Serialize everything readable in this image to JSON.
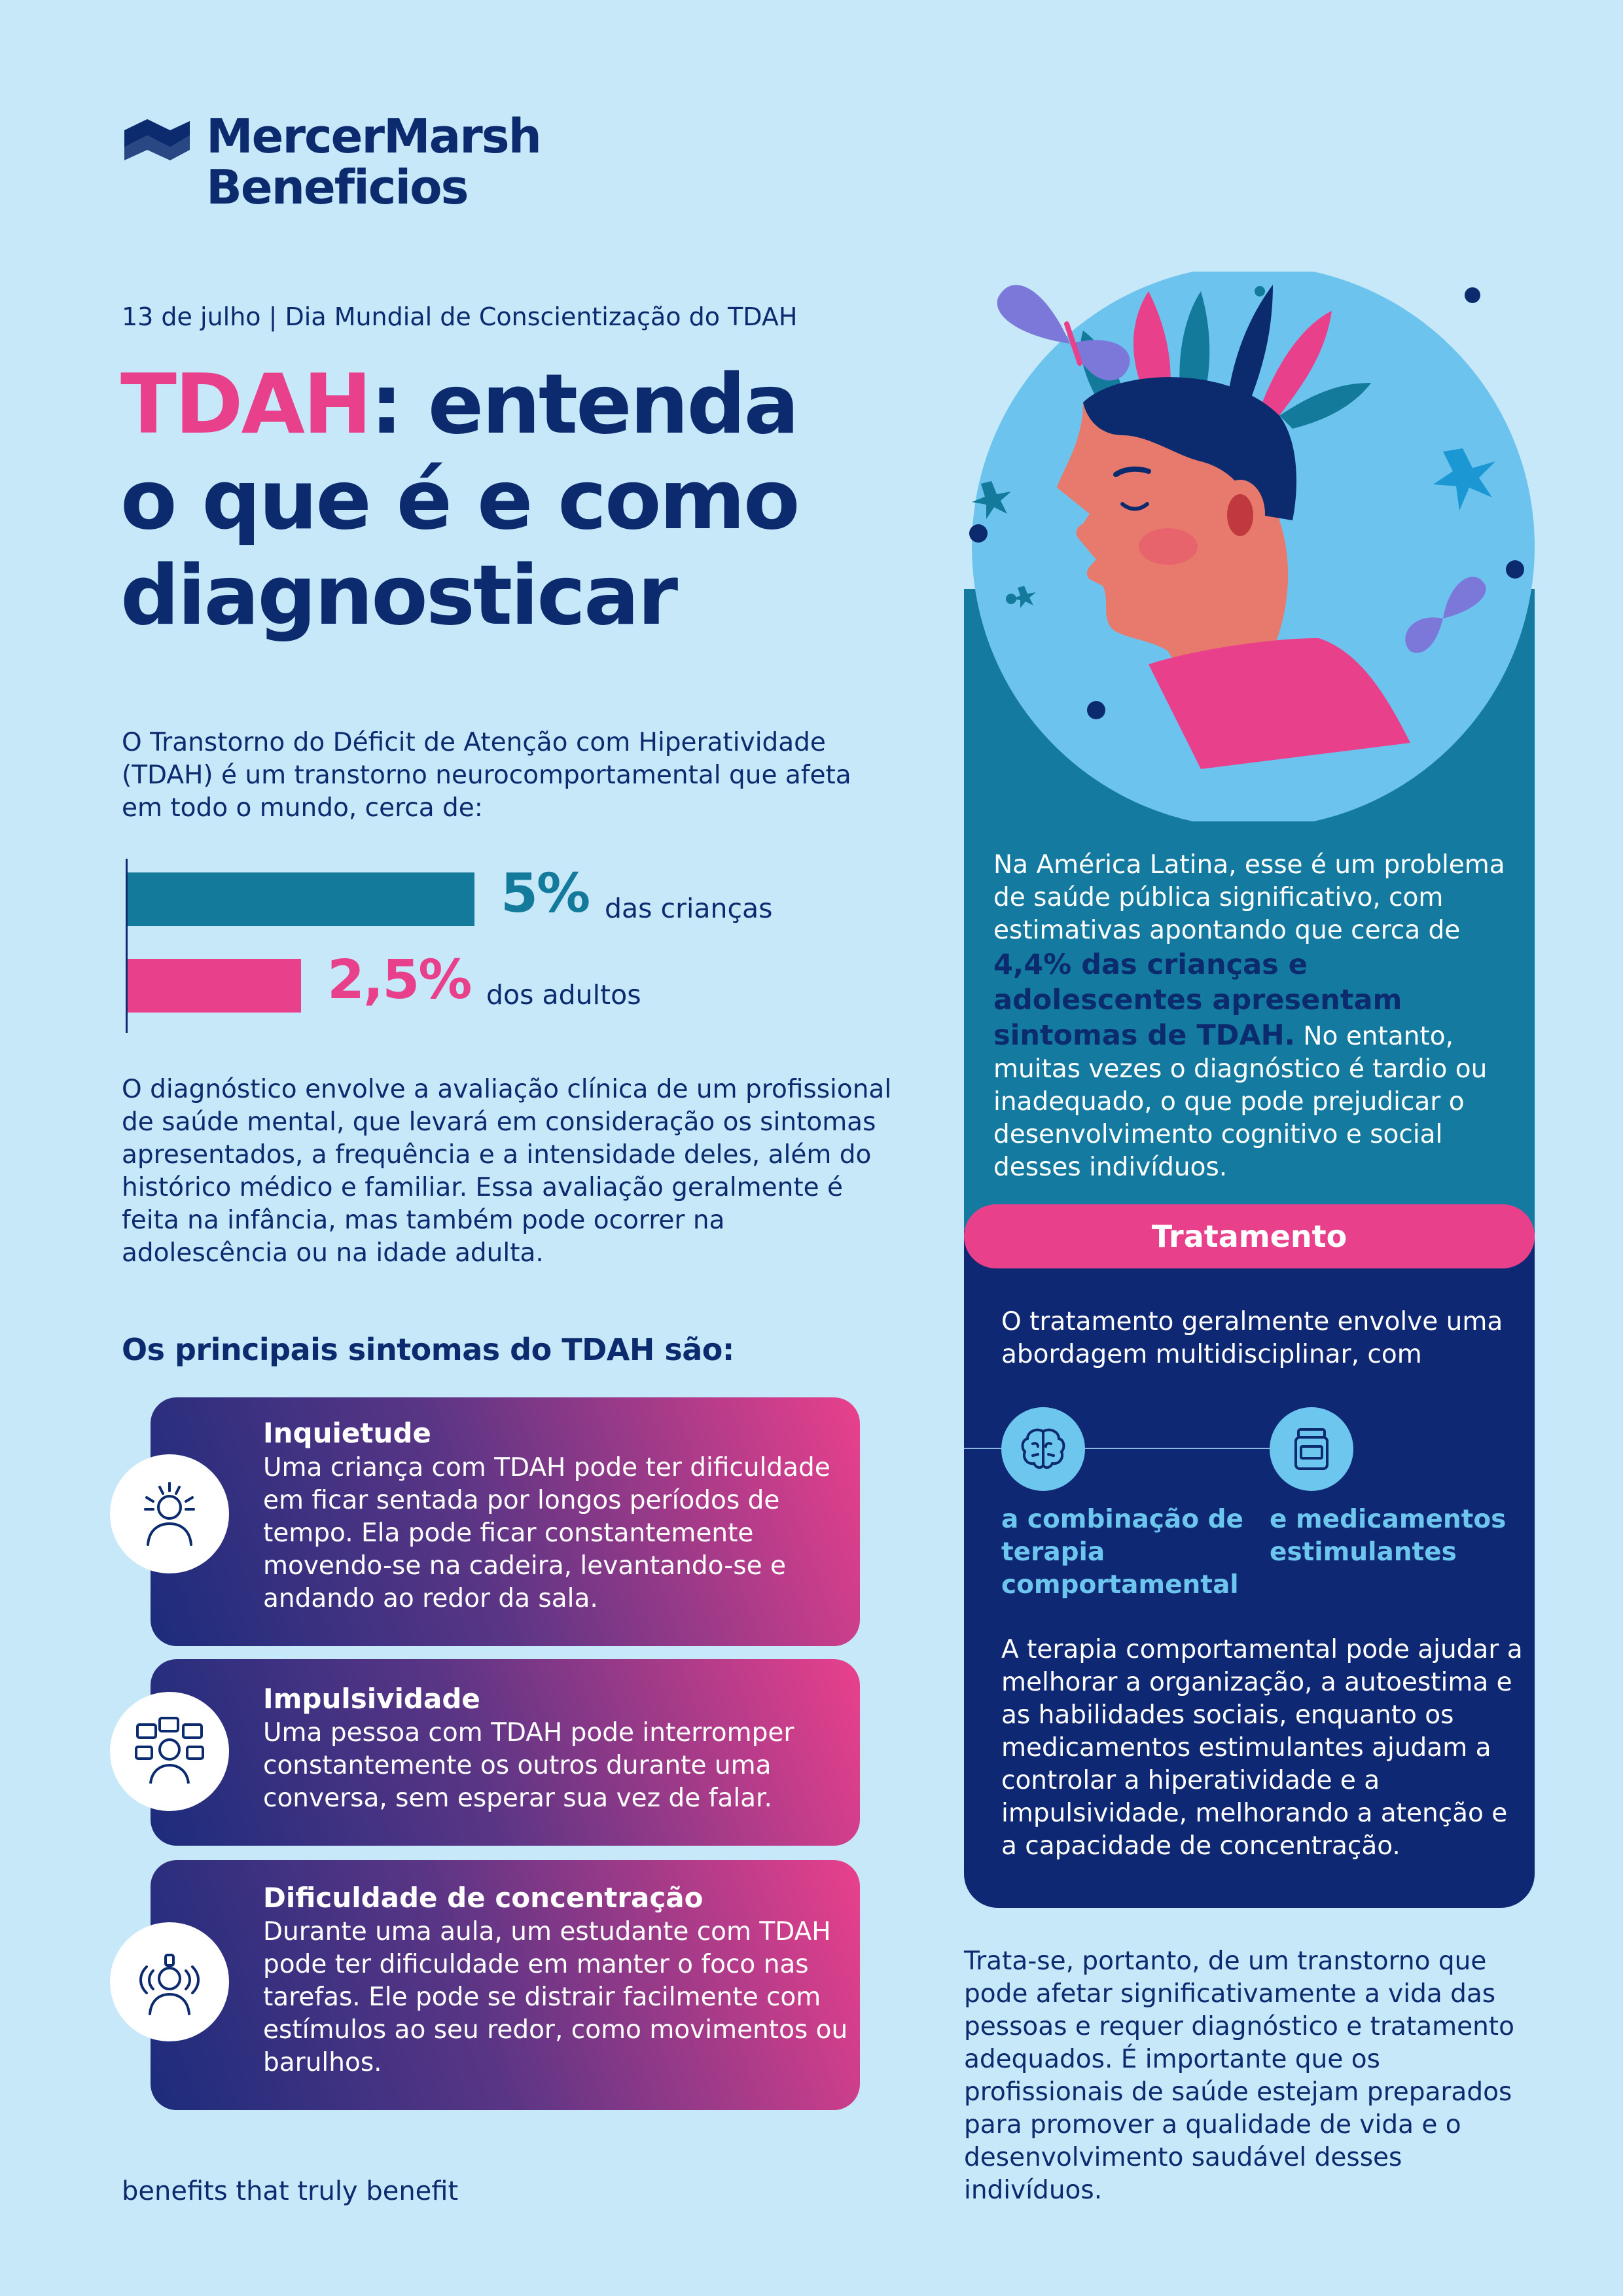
{
  "brand": {
    "line1": "MercerMarsh",
    "line2": "Beneficios"
  },
  "date_line": "13 de julho | Dia Mundial de Conscientização do TDAH",
  "headline": {
    "highlight": "TDAH",
    "rest": ": entenda o que é e como diagnosticar"
  },
  "intro": "O Transtorno do Déficit de Atenção com Hiperatividade (TDAH) é um transtorno neurocomportamental que afeta em todo o mundo, cerca de:",
  "stats": [
    {
      "value": "5%",
      "label": "das crianças",
      "percent": 5,
      "color": "#137a9c"
    },
    {
      "value": "2,5%",
      "label": "dos adultos",
      "percent": 2.5,
      "color": "#e9408c"
    }
  ],
  "diagnosis": "O diagnóstico envolve a avaliação clínica de um profissional de saúde mental, que levará em consideração os sintomas apresentados, a frequência e a intensidade deles, além do histórico médico e familiar. Essa avaliação geralmente é feita na infância, mas também pode ocorrer na adolescência ou na idade adulta.",
  "symptoms_heading": "Os principais sintomas do TDAH são:",
  "symptoms": [
    {
      "title": "Inquietude",
      "icon": "restless-person-icon",
      "body": "Uma criança com TDAH pode ter dificuldade em ficar sentada por longos períodos de tempo. Ela pode ficar constantemente movendo-se na cadeira, levantando-se e andando ao redor da sala."
    },
    {
      "title": "Impulsividade",
      "icon": "speech-bubbles-person-icon",
      "body": "Uma pessoa com TDAH pode interromper constantemente os outros durante uma conversa, sem esperar sua vez de falar."
    },
    {
      "title": "Dificuldade de concentração",
      "icon": "distracted-person-icon",
      "body": "Durante uma aula, um estudante com TDAH pode ter dificuldade em manter o foco nas tarefas. Ele pode se distrair facilmente com estímulos ao seu redor, como movimentos ou barulhos."
    }
  ],
  "tagline": "benefits that truly benefit",
  "latam": {
    "before": "Na América Latina, esse é um problema de saúde pública significativo, com estimativas apontando que cerca de ",
    "highlight": "4,4% das crianças e adolescentes apresentam sintomas de TDAH.",
    "after": " No entanto, muitas vezes o diagnóstico é tardio ou inadequado, o que pode prejudicar o desenvolvimento cognitivo e social desses indivíduos."
  },
  "treatment": {
    "title": "Tratamento",
    "intro": "O tratamento geralmente envolve uma abordagem multidisciplinar, com",
    "items": [
      {
        "label": "a combinação de terapia comportamental",
        "icon": "brain-icon"
      },
      {
        "label": "e medicamentos estimulantes",
        "icon": "medicine-jar-icon"
      }
    ],
    "body": "A terapia comportamental pode ajudar a melhorar a organização, a autoestima e as habilidades sociais, enquanto os medicamentos estimulantes ajudam a controlar a hiperatividade e a impulsividade, melhorando a atenção e a capacidade de concentração."
  },
  "conclusion": "Trata-se, portanto, de um transtorno que pode afetar significativamente a vida das pessoas e requer diagnóstico e tratamento adequados. É importante que os profissionais de saúde estejam preparados para promover a qualidade de vida e o desenvolvimento saudável desses indivíduos.",
  "colors": {
    "navy": "#0c2a6e",
    "pink": "#e9408c",
    "teal": "#137a9c",
    "light_blue": "#c6e8f8",
    "sky": "#6dc6ee"
  }
}
